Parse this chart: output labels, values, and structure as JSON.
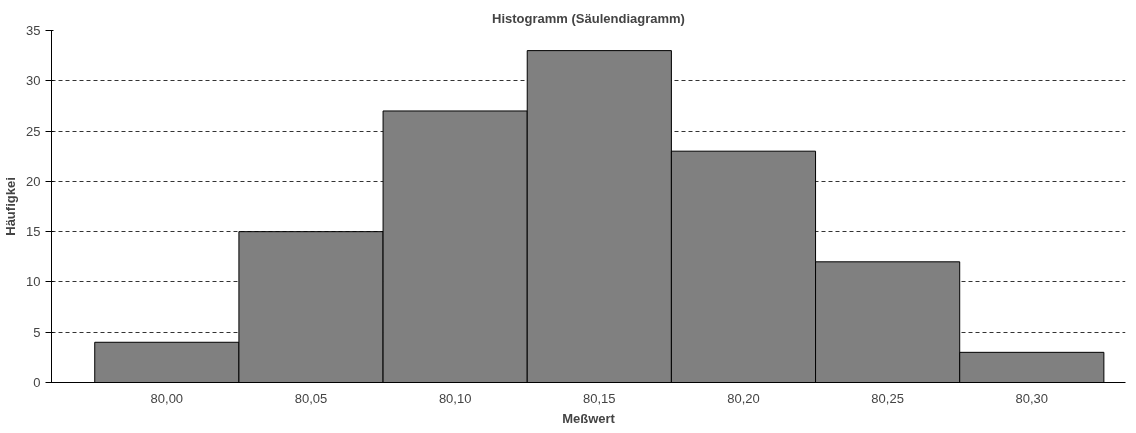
{
  "chart_data": {
    "type": "bar",
    "title": "Histogramm (Säulendiagramm)",
    "xlabel": "Meßwert",
    "ylabel": "Häufigkei",
    "categories": [
      "80,00",
      "80,05",
      "80,10",
      "80,15",
      "80,20",
      "80,25",
      "80,30"
    ],
    "values": [
      4,
      15,
      27,
      33,
      23,
      12,
      3
    ],
    "color": "#808080",
    "ylim": [
      0,
      35
    ],
    "yticks": [
      0,
      5,
      10,
      15,
      20,
      25,
      30,
      35
    ],
    "grid": "y"
  }
}
